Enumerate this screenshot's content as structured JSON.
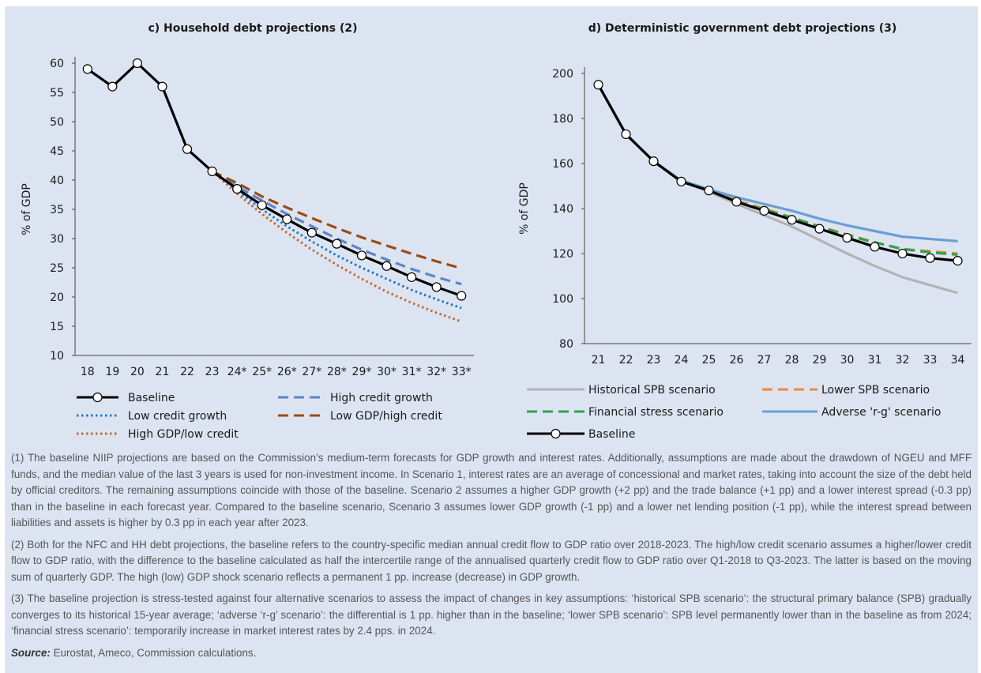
{
  "chart_data": [
    {
      "type": "line",
      "title": "c) Household debt projections (2)",
      "y_label": "% of GDP",
      "categories": [
        "18",
        "19",
        "20",
        "21",
        "22",
        "23",
        "24*",
        "25*",
        "26*",
        "27*",
        "28*",
        "29*",
        "30*",
        "31*",
        "32*",
        "33*"
      ],
      "ylim": [
        10,
        60
      ],
      "yticks": [
        10,
        15,
        20,
        25,
        30,
        35,
        40,
        45,
        50,
        55,
        60
      ],
      "series": [
        {
          "name": "Baseline",
          "color": "#000000",
          "dash": "solid",
          "marker": "circle",
          "values": [
            59,
            56,
            60,
            56,
            45.3,
            41.5,
            38.5,
            35.7,
            33.3,
            31,
            29.1,
            27.1,
            25.3,
            23.4,
            21.7,
            20.2
          ]
        },
        {
          "name": "High credit growth",
          "color": "#5c86c8",
          "dash": "dashed",
          "values": [
            null,
            null,
            null,
            null,
            null,
            41.5,
            38.9,
            36.5,
            34.2,
            32.1,
            30,
            28.1,
            26.4,
            24.8,
            23.4,
            22.2
          ]
        },
        {
          "name": "Low credit growth",
          "color": "#1f78c8",
          "dash": "dotted",
          "values": [
            null,
            null,
            null,
            null,
            null,
            41.5,
            38.2,
            35,
            32.1,
            29.5,
            27.1,
            25,
            23.1,
            21.2,
            19.6,
            18.1
          ]
        },
        {
          "name": "Low GDP/high credit",
          "color": "#9c4a14",
          "dash": "dashed",
          "values": [
            null,
            null,
            null,
            null,
            null,
            41.5,
            39.5,
            37.2,
            35.3,
            33.5,
            31.8,
            30.2,
            28.8,
            27.4,
            26.1,
            24.9
          ]
        },
        {
          "name": "High GDP/low credit",
          "color": "#c06a34",
          "dash": "dotted",
          "values": [
            null,
            null,
            null,
            null,
            null,
            41.5,
            37.7,
            34.2,
            31,
            28.1,
            25.5,
            23.1,
            20.9,
            19,
            17.3,
            15.8
          ]
        }
      ]
    },
    {
      "type": "line",
      "title": "d) Deterministic government debt projections (3)",
      "y_label": "% of GDP",
      "categories": [
        "21",
        "22",
        "23",
        "24",
        "25",
        "26",
        "27",
        "28",
        "29",
        "30",
        "31",
        "32",
        "33",
        "34"
      ],
      "ylim": [
        80,
        200
      ],
      "yticks": [
        80,
        100,
        120,
        140,
        160,
        180,
        200
      ],
      "series": [
        {
          "name": "Historical SPB scenario",
          "color": "#b3b3b3",
          "dash": "solid",
          "values": [
            195,
            173,
            161,
            152,
            147.5,
            142,
            137,
            132,
            126,
            120,
            114.5,
            109.5,
            106,
            102.5
          ]
        },
        {
          "name": "Lower SPB scenario",
          "color": "#f0873a",
          "dash": "dashed",
          "values": [
            195,
            173,
            161,
            152,
            148.5,
            143.5,
            140,
            136,
            132,
            128.5,
            125,
            122,
            121,
            120
          ]
        },
        {
          "name": "Financial stress scenario",
          "color": "#2ea24c",
          "dash": "dashed",
          "values": [
            195,
            173,
            161,
            152,
            148,
            143,
            139.5,
            136,
            132,
            128,
            125,
            122,
            120.5,
            119.5
          ]
        },
        {
          "name": "Adverse 'r-g' scenario",
          "color": "#6a9fd6",
          "dash": "solid",
          "values": [
            195,
            173,
            161,
            152.5,
            148.5,
            145,
            142,
            139,
            135.5,
            132.5,
            130,
            127.5,
            126.5,
            125.5
          ]
        },
        {
          "name": "Baseline",
          "color": "#000000",
          "dash": "solid",
          "marker": "circle",
          "values": [
            195,
            173,
            161,
            152,
            148,
            143,
            139,
            135,
            131,
            127,
            123,
            120,
            118,
            116.8
          ]
        }
      ]
    }
  ],
  "notes": [
    "(1) The baseline NIIP projections are based on the Commission’s medium-term forecasts for GDP growth and interest rates. Additionally, assumptions are made about the drawdown of NGEU and MFF funds, and the median value of the last 3 years is used for non-investment income. In Scenario 1, interest rates are an average of concessional and market rates, taking into account the size of the debt held by official creditors. The remaining assumptions coincide with those of the baseline. Scenario 2 assumes a higher GDP growth (+2 pp) and the trade balance (+1 pp) and a lower interest spread (-0.3 pp) than in the baseline in each forecast year. Compared to the baseline scenario, Scenario 3 assumes lower GDP growth (-1 pp) and a lower net lending position (-1 pp), while the interest spread between liabilities and assets is higher by 0.3 pp in each year after 2023.",
    "(2) Both for the NFC and HH debt projections, the baseline refers to the country-specific median annual credit flow to GDP ratio over 2018-2023. The high/low credit scenario assumes a higher/lower credit flow to GDP ratio, with the difference to the baseline calculated as half the intercertile range of the annualised quarterly credit flow to GDP ratio over Q1-2018 to Q3-2023. The latter is based on the moving sum of quarterly GDP. The high (low) GDP shock scenario reflects a permanent 1 pp. increase (decrease) in GDP growth.",
    "(3) The baseline projection is stress-tested against four alternative scenarios to assess the impact of changes in key assumptions: ‘historical SPB scenario’: the structural primary balance (SPB) gradually converges to its historical 15-year average; ‘adverse ‘r-g’ scenario’: the differential is 1 pp. higher than in the baseline; ‘lower SPB scenario’: SPB level permanently lower than in the baseline as from 2024; ‘financial stress scenario’: temporarily increase in market interest rates by 2.4 pps. in 2024."
  ],
  "source_label": "Source:",
  "source_text": "Eurostat, Ameco, Commission calculations."
}
